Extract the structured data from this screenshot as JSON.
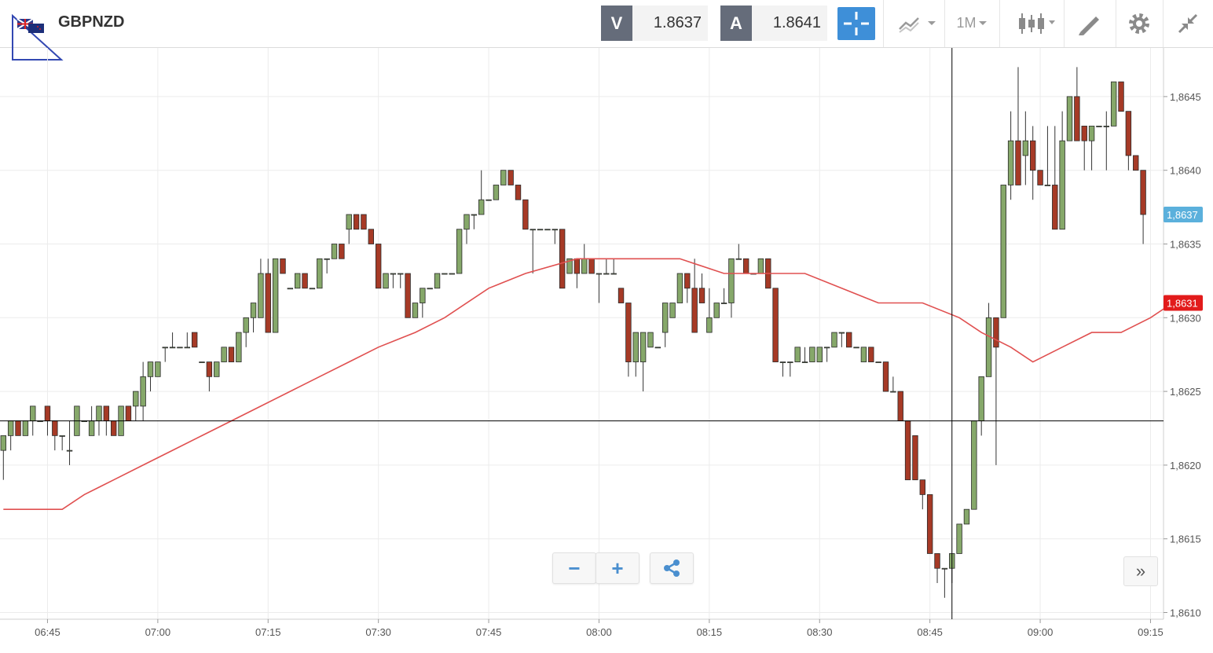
{
  "symbol": "GBPNZD",
  "quote": {
    "bid_label": "V",
    "bid_value": "1.8637",
    "ask_label": "A",
    "ask_value": "1.8641"
  },
  "toolbar": {
    "timeframe": "1M"
  },
  "icons": {
    "chart_type": "line-chart-icon",
    "candles": "candlestick-icon",
    "draw": "drawing-tool-icon",
    "settings": "gear-icon",
    "collapse": "collapse-icon",
    "crosshair": "crosshair-icon",
    "zoom_out": "minus-icon",
    "zoom_in": "plus-icon",
    "share": "share-icon",
    "scroll": "double-chevron-right-icon"
  },
  "colors": {
    "up": "#86a86a",
    "down": "#a63a26",
    "ma": "#e05050",
    "current_price": "#5bb0dc",
    "ma_label": "#e21b1b"
  },
  "zoom": {
    "minus": "−",
    "plus": "+"
  },
  "scroll_label": "»",
  "chart_data": {
    "type": "candlestick",
    "title": "GBPNZD",
    "xlabel": "",
    "ylabel": "",
    "ylim": [
      1.8609,
      1.8648
    ],
    "y_ticks": [
      "1,8610",
      "1,8615",
      "1,8620",
      "1,8625",
      "1,8630",
      "1,8635",
      "1,8640",
      "1,8645"
    ],
    "x_ticks": [
      "06:45",
      "07:00",
      "07:15",
      "07:30",
      "07:45",
      "08:00",
      "08:15",
      "08:30",
      "08:45",
      "09:00",
      "09:15"
    ],
    "x_tick_indices": [
      6,
      21,
      36,
      51,
      66,
      81,
      96,
      111,
      126,
      141,
      156
    ],
    "current_price_label": "1,8637",
    "current_price": 1.8637,
    "ma_label": "1,8631",
    "ma_value": 1.8631,
    "crosshair": {
      "time_index": 129,
      "price": 1.8623
    },
    "candles": [
      [
        1.8621,
        1.8622,
        1.8619,
        1.8622
      ],
      [
        1.8622,
        1.8623,
        1.8621,
        1.8623
      ],
      [
        1.8623,
        1.8623,
        1.8622,
        1.8622
      ],
      [
        1.8622,
        1.8623,
        1.8622,
        1.8623
      ],
      [
        1.8623,
        1.8624,
        1.8622,
        1.8624
      ],
      [
        1.8623,
        1.8623,
        1.8623,
        1.8623
      ],
      [
        1.8624,
        1.8624,
        1.8622,
        1.8623
      ],
      [
        1.8623,
        1.8623,
        1.8621,
        1.8622
      ],
      [
        1.8622,
        1.8622,
        1.8621,
        1.8622
      ],
      [
        1.8621,
        1.8623,
        1.862,
        1.8621
      ],
      [
        1.8622,
        1.8624,
        1.8622,
        1.8624
      ],
      [
        1.8623,
        1.8623,
        1.8623,
        1.8623
      ],
      [
        1.8622,
        1.8624,
        1.8622,
        1.8623
      ],
      [
        1.8623,
        1.8624,
        1.8622,
        1.8624
      ],
      [
        1.8624,
        1.8624,
        1.8622,
        1.8623
      ],
      [
        1.8623,
        1.8623,
        1.8622,
        1.8622
      ],
      [
        1.8622,
        1.8624,
        1.8622,
        1.8624
      ],
      [
        1.8624,
        1.8624,
        1.8623,
        1.8623
      ],
      [
        1.8624,
        1.8625,
        1.8623,
        1.8625
      ],
      [
        1.8624,
        1.8627,
        1.8623,
        1.8626
      ],
      [
        1.8626,
        1.8627,
        1.8625,
        1.8627
      ],
      [
        1.8626,
        1.8627,
        1.8626,
        1.8627
      ],
      [
        1.8628,
        1.8628,
        1.8627,
        1.8628
      ],
      [
        1.8628,
        1.8629,
        1.8628,
        1.8628
      ],
      [
        1.8628,
        1.8628,
        1.8628,
        1.8628
      ],
      [
        1.8628,
        1.8629,
        1.8628,
        1.8628
      ],
      [
        1.8629,
        1.8629,
        1.8628,
        1.8628
      ],
      [
        1.8627,
        1.8627,
        1.8627,
        1.8627
      ],
      [
        1.8627,
        1.8627,
        1.8625,
        1.8626
      ],
      [
        1.8626,
        1.8627,
        1.8626,
        1.8627
      ],
      [
        1.8627,
        1.8628,
        1.8627,
        1.8628
      ],
      [
        1.8628,
        1.8628,
        1.8627,
        1.8627
      ],
      [
        1.8627,
        1.8629,
        1.8627,
        1.8629
      ],
      [
        1.8629,
        1.863,
        1.8628,
        1.863
      ],
      [
        1.863,
        1.8631,
        1.8629,
        1.8631
      ],
      [
        1.863,
        1.8634,
        1.863,
        1.8633
      ],
      [
        1.8633,
        1.8634,
        1.8629,
        1.8629
      ],
      [
        1.8629,
        1.8634,
        1.8629,
        1.8634
      ],
      [
        1.8634,
        1.8634,
        1.8633,
        1.8633
      ],
      [
        1.8632,
        1.8632,
        1.8632,
        1.8632
      ],
      [
        1.8632,
        1.8633,
        1.8632,
        1.8633
      ],
      [
        1.8633,
        1.8633,
        1.8632,
        1.8632
      ],
      [
        1.8632,
        1.8632,
        1.8632,
        1.8632
      ],
      [
        1.8632,
        1.8634,
        1.8632,
        1.8634
      ],
      [
        1.8634,
        1.8634,
        1.8633,
        1.8634
      ],
      [
        1.8634,
        1.8635,
        1.8634,
        1.8635
      ],
      [
        1.8635,
        1.8635,
        1.8634,
        1.8634
      ],
      [
        1.8636,
        1.8637,
        1.8635,
        1.8637
      ],
      [
        1.8637,
        1.8637,
        1.8636,
        1.8636
      ],
      [
        1.8637,
        1.8637,
        1.8636,
        1.8636
      ],
      [
        1.8636,
        1.8636,
        1.8635,
        1.8635
      ],
      [
        1.8635,
        1.8635,
        1.8632,
        1.8632
      ],
      [
        1.8632,
        1.8633,
        1.8632,
        1.8633
      ],
      [
        1.8633,
        1.8633,
        1.8632,
        1.8633
      ],
      [
        1.8633,
        1.8633,
        1.8632,
        1.8633
      ],
      [
        1.8633,
        1.8633,
        1.863,
        1.863
      ],
      [
        1.863,
        1.8631,
        1.863,
        1.8631
      ],
      [
        1.8631,
        1.8632,
        1.863,
        1.8632
      ],
      [
        1.8632,
        1.8632,
        1.8632,
        1.8632
      ],
      [
        1.8632,
        1.8633,
        1.8632,
        1.8633
      ],
      [
        1.8633,
        1.8633,
        1.8633,
        1.8633
      ],
      [
        1.8633,
        1.8633,
        1.8633,
        1.8633
      ],
      [
        1.8633,
        1.8636,
        1.8633,
        1.8636
      ],
      [
        1.8636,
        1.8637,
        1.8635,
        1.8637
      ],
      [
        1.8637,
        1.8637,
        1.8636,
        1.8637
      ],
      [
        1.8637,
        1.864,
        1.8637,
        1.8638
      ],
      [
        1.8638,
        1.8638,
        1.8638,
        1.8638
      ],
      [
        1.8638,
        1.8639,
        1.8638,
        1.8639
      ],
      [
        1.8639,
        1.864,
        1.8639,
        1.864
      ],
      [
        1.864,
        1.864,
        1.8639,
        1.8639
      ],
      [
        1.8639,
        1.8639,
        1.8638,
        1.8638
      ],
      [
        1.8638,
        1.8638,
        1.8636,
        1.8636
      ],
      [
        1.8636,
        1.8636,
        1.8633,
        1.8636
      ],
      [
        1.8636,
        1.8636,
        1.8636,
        1.8636
      ],
      [
        1.8636,
        1.8636,
        1.8636,
        1.8636
      ],
      [
        1.8636,
        1.8636,
        1.8635,
        1.8636
      ],
      [
        1.8636,
        1.8636,
        1.8632,
        1.8632
      ],
      [
        1.8633,
        1.8634,
        1.8633,
        1.8634
      ],
      [
        1.8634,
        1.8634,
        1.8632,
        1.8633
      ],
      [
        1.8633,
        1.8635,
        1.8633,
        1.8634
      ],
      [
        1.8634,
        1.8634,
        1.8633,
        1.8633
      ],
      [
        1.8633,
        1.8633,
        1.8631,
        1.8633
      ],
      [
        1.8633,
        1.8634,
        1.8633,
        1.8633
      ],
      [
        1.8633,
        1.8634,
        1.8633,
        1.8633
      ],
      [
        1.8632,
        1.8632,
        1.8631,
        1.8631
      ],
      [
        1.8631,
        1.8631,
        1.8626,
        1.8627
      ],
      [
        1.8627,
        1.8629,
        1.8626,
        1.8629
      ],
      [
        1.8627,
        1.8629,
        1.8625,
        1.8629
      ],
      [
        1.8628,
        1.8629,
        1.8628,
        1.8629
      ],
      [
        1.8628,
        1.8628,
        1.8628,
        1.8628
      ],
      [
        1.8629,
        1.8631,
        1.8628,
        1.8631
      ],
      [
        1.863,
        1.8631,
        1.863,
        1.8631
      ],
      [
        1.8631,
        1.8633,
        1.8631,
        1.8633
      ],
      [
        1.8633,
        1.8633,
        1.8631,
        1.8632
      ],
      [
        1.8632,
        1.8634,
        1.8629,
        1.8629
      ],
      [
        1.8632,
        1.8633,
        1.8631,
        1.8631
      ],
      [
        1.8629,
        1.8632,
        1.8629,
        1.863
      ],
      [
        1.863,
        1.8631,
        1.863,
        1.8631
      ],
      [
        1.8631,
        1.8632,
        1.8631,
        1.8631
      ],
      [
        1.8631,
        1.8634,
        1.863,
        1.8634
      ],
      [
        1.8634,
        1.8635,
        1.8634,
        1.8634
      ],
      [
        1.8634,
        1.8634,
        1.8633,
        1.8633
      ],
      [
        1.8633,
        1.8633,
        1.8633,
        1.8633
      ],
      [
        1.8633,
        1.8634,
        1.8633,
        1.8634
      ],
      [
        1.8634,
        1.8634,
        1.8632,
        1.8632
      ],
      [
        1.8632,
        1.8632,
        1.8627,
        1.8627
      ],
      [
        1.8627,
        1.8627,
        1.8626,
        1.8627
      ],
      [
        1.8627,
        1.8627,
        1.8626,
        1.8627
      ],
      [
        1.8627,
        1.8628,
        1.8627,
        1.8628
      ],
      [
        1.8627,
        1.8628,
        1.8627,
        1.8627
      ],
      [
        1.8627,
        1.8628,
        1.8627,
        1.8628
      ],
      [
        1.8627,
        1.8628,
        1.8627,
        1.8628
      ],
      [
        1.8628,
        1.8628,
        1.8627,
        1.8628
      ],
      [
        1.8628,
        1.8629,
        1.8628,
        1.8629
      ],
      [
        1.8629,
        1.8629,
        1.8628,
        1.8629
      ],
      [
        1.8629,
        1.8629,
        1.8628,
        1.8628
      ],
      [
        1.8628,
        1.8628,
        1.8628,
        1.8628
      ],
      [
        1.8627,
        1.8628,
        1.8627,
        1.8628
      ],
      [
        1.8628,
        1.8628,
        1.8627,
        1.8627
      ],
      [
        1.8627,
        1.8627,
        1.8627,
        1.8627
      ],
      [
        1.8627,
        1.8627,
        1.8625,
        1.8625
      ],
      [
        1.8625,
        1.8626,
        1.8625,
        1.8625
      ],
      [
        1.8625,
        1.8625,
        1.8623,
        1.8623
      ],
      [
        1.8623,
        1.8623,
        1.8619,
        1.8619
      ],
      [
        1.8622,
        1.8622,
        1.8619,
        1.8619
      ],
      [
        1.8619,
        1.8619,
        1.8617,
        1.8618
      ],
      [
        1.8618,
        1.8618,
        1.8614,
        1.8614
      ],
      [
        1.8614,
        1.8614,
        1.8612,
        1.8613
      ],
      [
        1.8613,
        1.8613,
        1.8611,
        1.8613
      ],
      [
        1.8613,
        1.8614,
        1.8612,
        1.8614
      ],
      [
        1.8614,
        1.8616,
        1.8614,
        1.8616
      ],
      [
        1.8616,
        1.8617,
        1.8616,
        1.8617
      ],
      [
        1.8617,
        1.8623,
        1.8617,
        1.8623
      ],
      [
        1.8623,
        1.8626,
        1.8622,
        1.8626
      ],
      [
        1.8626,
        1.8631,
        1.8626,
        1.863
      ],
      [
        1.863,
        1.863,
        1.862,
        1.8628
      ],
      [
        1.863,
        1.8639,
        1.863,
        1.8639
      ],
      [
        1.8639,
        1.8644,
        1.8638,
        1.8642
      ],
      [
        1.8642,
        1.8647,
        1.8639,
        1.8639
      ],
      [
        1.8641,
        1.8644,
        1.8639,
        1.8642
      ],
      [
        1.8642,
        1.8643,
        1.8638,
        1.864
      ],
      [
        1.864,
        1.864,
        1.8639,
        1.8639
      ],
      [
        1.8639,
        1.8643,
        1.8639,
        1.8639
      ],
      [
        1.8639,
        1.8643,
        1.8636,
        1.8636
      ],
      [
        1.8636,
        1.8644,
        1.8636,
        1.8642
      ],
      [
        1.8642,
        1.8645,
        1.8642,
        1.8645
      ],
      [
        1.8645,
        1.8647,
        1.8642,
        1.8642
      ],
      [
        1.8643,
        1.8643,
        1.864,
        1.8642
      ],
      [
        1.8642,
        1.8643,
        1.864,
        1.8643
      ],
      [
        1.8643,
        1.8643,
        1.8643,
        1.8643
      ],
      [
        1.8643,
        1.8644,
        1.864,
        1.8643
      ],
      [
        1.8643,
        1.8646,
        1.8643,
        1.8646
      ],
      [
        1.8646,
        1.8646,
        1.8644,
        1.8644
      ],
      [
        1.8644,
        1.8644,
        1.864,
        1.8641
      ],
      [
        1.8641,
        1.8641,
        1.864,
        1.864
      ],
      [
        1.864,
        1.864,
        1.8635,
        1.8637
      ]
    ],
    "ma": [
      [
        0,
        1.8617
      ],
      [
        2,
        1.8617
      ],
      [
        4,
        1.8617
      ],
      [
        6,
        1.8617
      ],
      [
        8,
        1.8617
      ],
      [
        11,
        1.8618
      ],
      [
        15,
        1.8619
      ],
      [
        19,
        1.862
      ],
      [
        23,
        1.8621
      ],
      [
        27,
        1.8622
      ],
      [
        31,
        1.8623
      ],
      [
        35,
        1.8624
      ],
      [
        39,
        1.8625
      ],
      [
        43,
        1.8626
      ],
      [
        47,
        1.8627
      ],
      [
        51,
        1.8628
      ],
      [
        56,
        1.8629
      ],
      [
        60,
        1.863
      ],
      [
        66,
        1.8632
      ],
      [
        71,
        1.8633
      ],
      [
        78,
        1.8634
      ],
      [
        85,
        1.8634
      ],
      [
        92,
        1.8634
      ],
      [
        98,
        1.8633
      ],
      [
        104,
        1.8633
      ],
      [
        109,
        1.8633
      ],
      [
        114,
        1.8632
      ],
      [
        119,
        1.8631
      ],
      [
        125,
        1.8631
      ],
      [
        130,
        1.863
      ],
      [
        133,
        1.8629
      ],
      [
        137,
        1.8628
      ],
      [
        140,
        1.8627
      ],
      [
        144,
        1.8628
      ],
      [
        148,
        1.8629
      ],
      [
        152,
        1.8629
      ],
      [
        156,
        1.863
      ],
      [
        159,
        1.8631
      ]
    ]
  }
}
